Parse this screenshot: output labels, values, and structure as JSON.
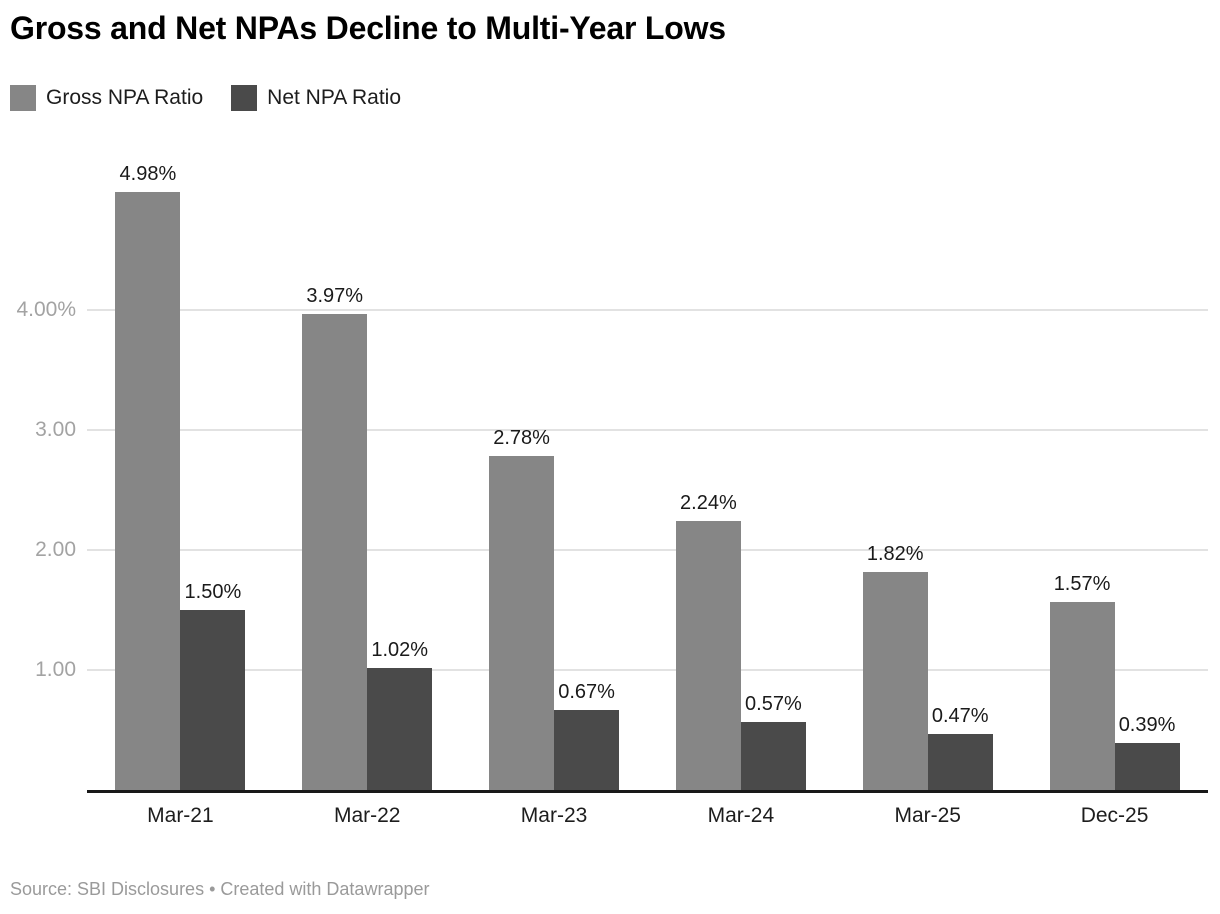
{
  "title": "Gross and Net NPAs Decline to Multi-Year Lows",
  "legend": {
    "items": [
      {
        "label": "Gross NPA Ratio",
        "color": "#868686"
      },
      {
        "label": "Net NPA Ratio",
        "color": "#4a4a4a"
      }
    ]
  },
  "chart_data": {
    "type": "bar",
    "title": "Gross and Net NPAs Decline to Multi-Year Lows",
    "categories": [
      "Mar-21",
      "Mar-22",
      "Mar-23",
      "Mar-24",
      "Mar-25",
      "Dec-25"
    ],
    "series": [
      {
        "name": "Gross NPA Ratio",
        "color": "#868686",
        "values": [
          4.98,
          3.97,
          2.78,
          2.24,
          1.82,
          1.57
        ],
        "labels": [
          "4.98%",
          "3.97%",
          "2.78%",
          "2.24%",
          "1.82%",
          "1.57%"
        ]
      },
      {
        "name": "Net NPA Ratio",
        "color": "#4a4a4a",
        "values": [
          1.5,
          1.02,
          0.67,
          0.57,
          0.47,
          0.39
        ],
        "labels": [
          "1.50%",
          "1.02%",
          "0.67%",
          "0.57%",
          "0.47%",
          "0.39%"
        ]
      }
    ],
    "unit": "%",
    "xlabel": "",
    "ylabel": "",
    "ylim": [
      0,
      5.4
    ],
    "y_axis": {
      "grid": true,
      "ticks": [
        {
          "value": 1,
          "label": "1.00"
        },
        {
          "value": 2,
          "label": "2.00"
        },
        {
          "value": 3,
          "label": "3.00"
        },
        {
          "value": 4,
          "label": "4.00%"
        }
      ]
    },
    "legend_position": "top-left",
    "bar_value_labels_shown": true
  },
  "footer": {
    "source": "Source: SBI Disclosures • Created with Datawrapper"
  }
}
